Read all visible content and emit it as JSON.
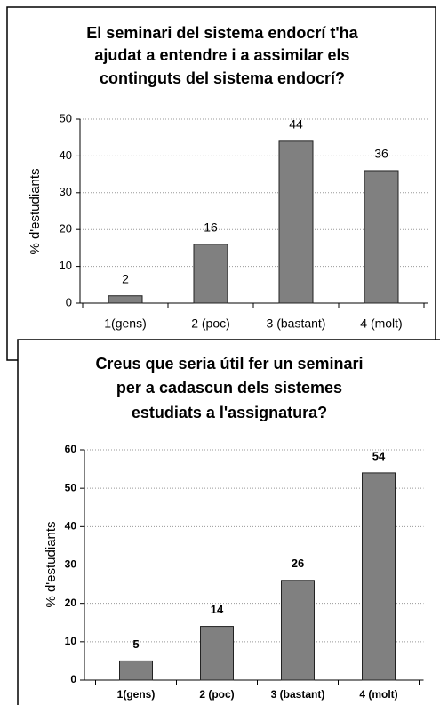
{
  "chart_data": [
    {
      "type": "bar",
      "title": [
        "El seminari del sistema endocrí  t'ha",
        "ajudat a entendre i a assimilar els",
        "continguts del sistema endocrí?"
      ],
      "y_label": "% d'estudiants",
      "categories": [
        "1(gens)",
        "2 (poc)",
        "3 (bastant)",
        "4 (molt)"
      ],
      "values": [
        2,
        16,
        44,
        36
      ],
      "color": "#808080",
      "ylim": [
        0,
        50
      ],
      "yticks": [
        0,
        10,
        20,
        30,
        40,
        50
      ],
      "grid": true
    },
    {
      "type": "bar",
      "title": [
        "Creus que seria útil fer un seminari",
        "per a cadascun dels sistemes",
        "estudiats a l'assignatura?"
      ],
      "y_label": "% d'estudiants",
      "categories": [
        "1(gens)",
        "2 (poc)",
        "3 (bastant)",
        "4 (molt)"
      ],
      "values": [
        5,
        14,
        26,
        54
      ],
      "color": "#808080",
      "ylim": [
        0,
        60
      ],
      "yticks": [
        0,
        10,
        20,
        30,
        40,
        50,
        60
      ],
      "grid": true
    }
  ]
}
